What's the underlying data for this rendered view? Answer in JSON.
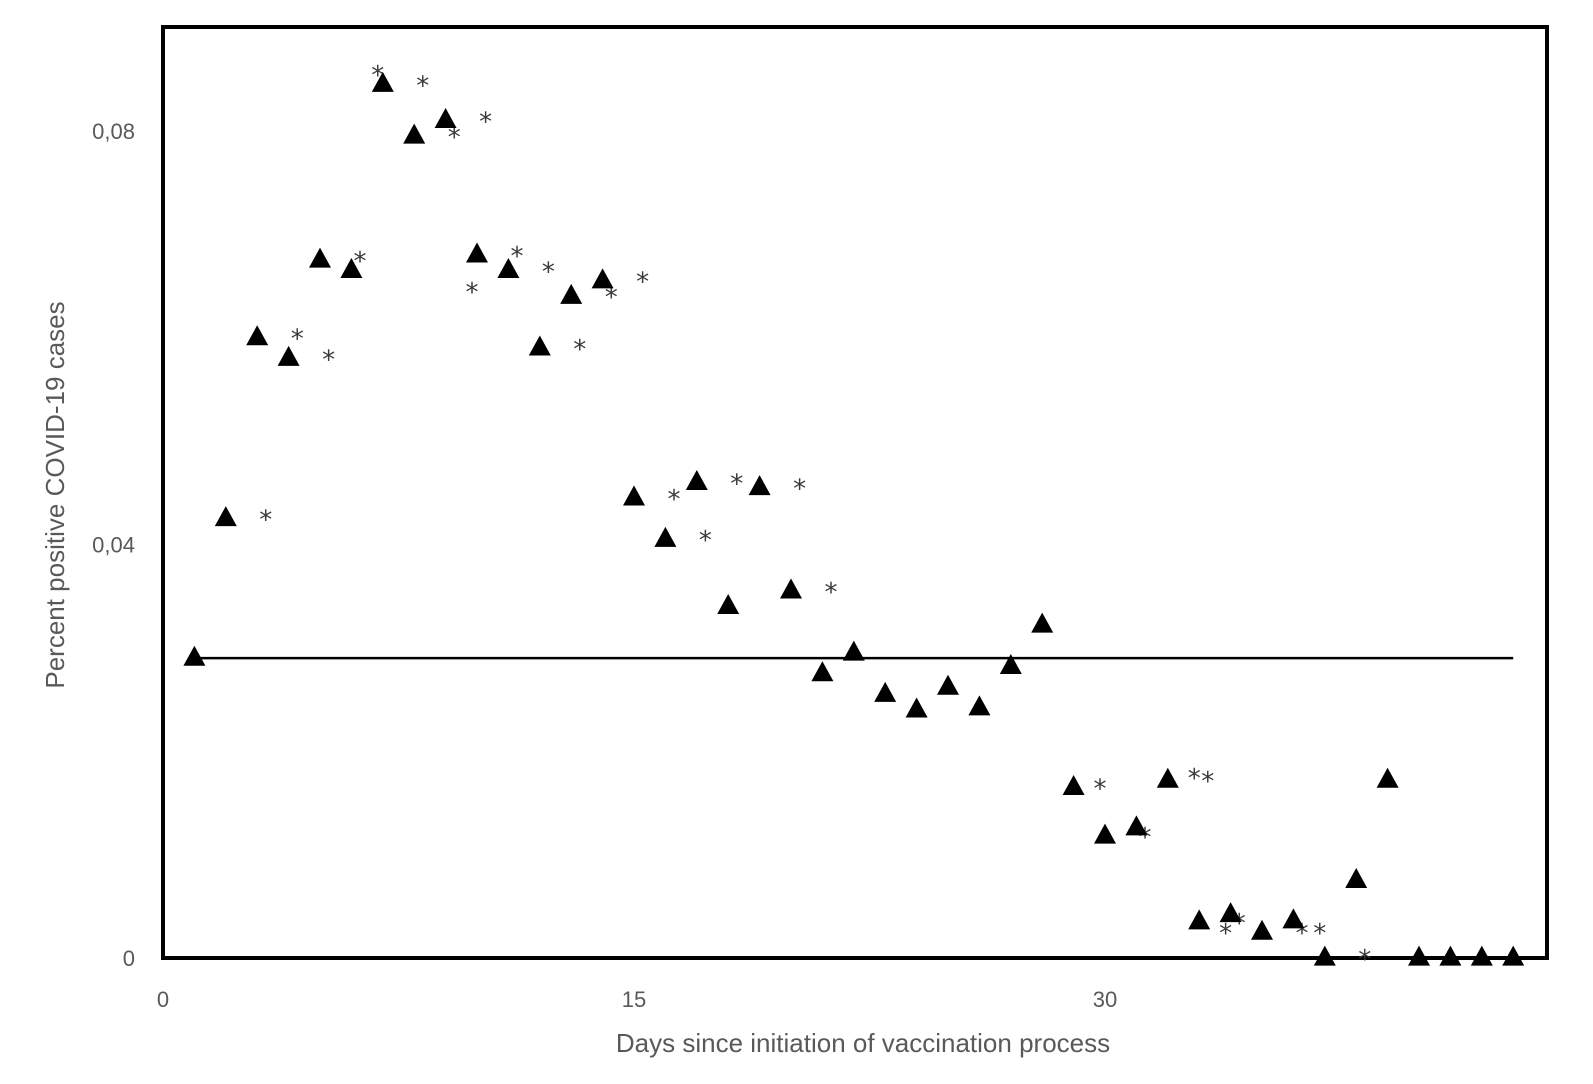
{
  "chart_data": {
    "type": "scatter",
    "title": "",
    "xlabel": "Days since initiation of vaccination process",
    "ylabel": "Percent positive COVID-19 cases",
    "xlim": [
      0,
      44
    ],
    "ylim": [
      0,
      0.09
    ],
    "x_ticks": [
      0,
      15,
      30
    ],
    "x_tick_labels": [
      "0",
      "15",
      "30"
    ],
    "y_ticks": [
      0,
      0.04,
      0.08
    ],
    "y_tick_labels": [
      "0",
      "0,04",
      "0,08"
    ],
    "grid": false,
    "legend": "none",
    "marker": "triangle",
    "marker_color": "#000000",
    "reference_line": {
      "y": 0.029,
      "x_start": 1,
      "x_end": 43
    },
    "points": [
      {
        "x": 1,
        "y": 0.029,
        "sig": false
      },
      {
        "x": 2,
        "y": 0.0425,
        "sig": true
      },
      {
        "x": 3,
        "y": 0.06,
        "sig": true
      },
      {
        "x": 4,
        "y": 0.058,
        "sig": true
      },
      {
        "x": 5,
        "y": 0.0675,
        "sig": true
      },
      {
        "x": 6,
        "y": 0.0665,
        "sig": false
      },
      {
        "x": 7,
        "y": 0.0845,
        "sig": true
      },
      {
        "x": 8,
        "y": 0.0795,
        "sig": true
      },
      {
        "x": 9,
        "y": 0.081,
        "sig": true
      },
      {
        "x": 10,
        "y": 0.068,
        "sig": true
      },
      {
        "x": 11,
        "y": 0.0665,
        "sig": true
      },
      {
        "x": 12,
        "y": 0.059,
        "sig": true
      },
      {
        "x": 13,
        "y": 0.064,
        "sig": true
      },
      {
        "x": 14,
        "y": 0.0655,
        "sig": true
      },
      {
        "x": 15,
        "y": 0.0445,
        "sig": true
      },
      {
        "x": 16,
        "y": 0.0405,
        "sig": true
      },
      {
        "x": 17,
        "y": 0.046,
        "sig": true
      },
      {
        "x": 18,
        "y": 0.034,
        "sig": false
      },
      {
        "x": 19,
        "y": 0.0455,
        "sig": true
      },
      {
        "x": 20,
        "y": 0.0355,
        "sig": true
      },
      {
        "x": 21,
        "y": 0.0275,
        "sig": false
      },
      {
        "x": 22,
        "y": 0.0295,
        "sig": false
      },
      {
        "x": 23,
        "y": 0.0255,
        "sig": false
      },
      {
        "x": 24,
        "y": 0.024,
        "sig": false
      },
      {
        "x": 25,
        "y": 0.0262,
        "sig": false
      },
      {
        "x": 26,
        "y": 0.0242,
        "sig": false
      },
      {
        "x": 27,
        "y": 0.0282,
        "sig": false
      },
      {
        "x": 28,
        "y": 0.0322,
        "sig": false
      },
      {
        "x": 29,
        "y": 0.0165,
        "sig": false
      },
      {
        "x": 30,
        "y": 0.0118,
        "sig": true
      },
      {
        "x": 31,
        "y": 0.0126,
        "sig": false
      },
      {
        "x": 32,
        "y": 0.0172,
        "sig": true
      },
      {
        "x": 33,
        "y": 0.0035,
        "sig": true
      },
      {
        "x": 34,
        "y": 0.0042,
        "sig": false
      },
      {
        "x": 35,
        "y": 0.0025,
        "sig": true
      },
      {
        "x": 36,
        "y": 0.0036,
        "sig": false
      },
      {
        "x": 37,
        "y": 0.0,
        "sig": true
      },
      {
        "x": 38,
        "y": 0.0075,
        "sig": false
      },
      {
        "x": 39,
        "y": 0.0172,
        "sig": false
      },
      {
        "x": 40,
        "y": 0.0,
        "sig": false
      },
      {
        "x": 41,
        "y": 0.0,
        "sig": false
      },
      {
        "x": 42,
        "y": 0.0,
        "sig": false
      },
      {
        "x": 43,
        "y": 0.0,
        "sig": false
      }
    ],
    "extra_asterisks": [
      {
        "x": 7,
        "y": 0.0855
      },
      {
        "x": 10,
        "y": 0.0645
      },
      {
        "x": 30,
        "y": 0.0165
      },
      {
        "x": 33,
        "y": 0.0175
      },
      {
        "x": 34,
        "y": 0.0025
      },
      {
        "x": 37,
        "y": 0.0025
      }
    ],
    "significance_marker": "*"
  }
}
